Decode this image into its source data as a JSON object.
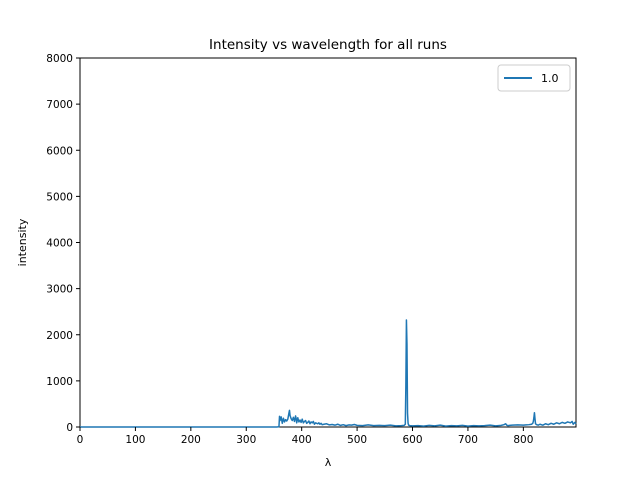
{
  "chart_data": {
    "type": "line",
    "title": "Intensity vs wavelength for all runs",
    "xlabel": "λ",
    "ylabel": "intensity",
    "xlim": [
      0,
      895
    ],
    "ylim": [
      0,
      8000
    ],
    "xticks": [
      0,
      100,
      200,
      300,
      400,
      500,
      600,
      700,
      800
    ],
    "yticks": [
      0,
      1000,
      2000,
      3000,
      4000,
      5000,
      6000,
      7000,
      8000
    ],
    "grid": false,
    "legend_position": "top-right",
    "series": [
      {
        "name": "1.0",
        "color": "#1f77b4",
        "x": [
          0,
          355,
          359,
          360,
          361,
          363,
          365,
          367,
          369,
          371,
          373,
          375,
          377,
          378,
          379,
          381,
          383,
          385,
          387,
          389,
          390,
          391,
          393,
          395,
          397,
          399,
          401,
          403,
          405,
          407,
          409,
          411,
          413,
          415,
          417,
          419,
          421,
          423,
          425,
          427,
          429,
          431,
          433,
          435,
          437,
          440,
          445,
          450,
          455,
          460,
          465,
          470,
          475,
          480,
          485,
          490,
          495,
          500,
          510,
          520,
          530,
          540,
          550,
          560,
          570,
          580,
          585,
          587,
          588,
          589,
          590,
          591,
          592,
          593,
          595,
          600,
          610,
          620,
          630,
          640,
          650,
          660,
          670,
          680,
          690,
          700,
          710,
          720,
          730,
          740,
          750,
          760,
          765,
          768,
          770,
          772,
          775,
          780,
          790,
          800,
          805,
          810,
          815,
          817,
          818,
          819,
          820,
          821,
          822,
          824,
          827,
          830,
          835,
          840,
          845,
          850,
          855,
          860,
          865,
          870,
          875,
          880,
          885,
          888,
          890,
          893,
          895
        ],
        "y": [
          0,
          0,
          5,
          230,
          140,
          220,
          80,
          190,
          110,
          160,
          130,
          170,
          300,
          360,
          250,
          180,
          140,
          210,
          120,
          240,
          180,
          90,
          200,
          110,
          150,
          100,
          170,
          90,
          120,
          140,
          80,
          100,
          130,
          70,
          110,
          90,
          120,
          60,
          90,
          80,
          70,
          90,
          60,
          80,
          50,
          60,
          70,
          45,
          55,
          40,
          60,
          35,
          50,
          30,
          45,
          40,
          55,
          35,
          30,
          45,
          30,
          35,
          30,
          40,
          25,
          30,
          35,
          60,
          900,
          2320,
          1800,
          300,
          80,
          40,
          30,
          25,
          30,
          20,
          35,
          25,
          40,
          20,
          30,
          25,
          35,
          20,
          30,
          25,
          30,
          40,
          25,
          35,
          50,
          70,
          40,
          30,
          35,
          40,
          45,
          40,
          45,
          50,
          60,
          80,
          120,
          200,
          310,
          180,
          70,
          50,
          40,
          60,
          40,
          70,
          50,
          80,
          60,
          90,
          70,
          100,
          80,
          110,
          90,
          120,
          60,
          100,
          70
        ]
      }
    ]
  }
}
